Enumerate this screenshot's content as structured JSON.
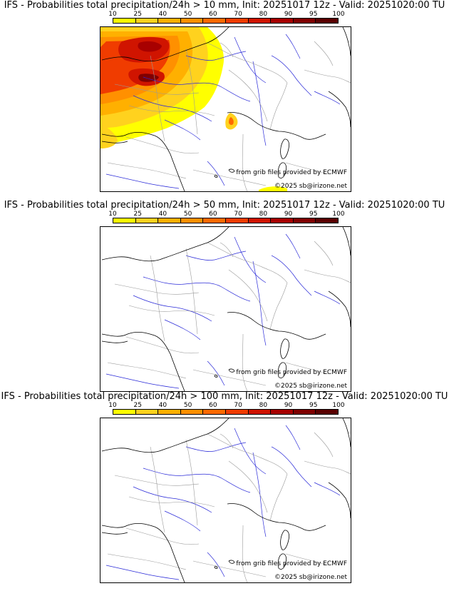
{
  "legend": {
    "ticks": [
      "10",
      "25",
      "40",
      "50",
      "60",
      "70",
      "80",
      "90",
      "95",
      "100"
    ],
    "colors": [
      "#ffff00",
      "#ffd21e",
      "#ffb000",
      "#ff9000",
      "#ff6a00",
      "#f03c00",
      "#d01400",
      "#a80000",
      "#800000",
      "#5a0000"
    ]
  },
  "map_colors": {
    "coast": "#000000",
    "border": "#9a9a9a",
    "river": "#2a2ad8"
  },
  "panels": [
    {
      "title": "IFS - Probabilities total precipitation/24h > 10 mm, Init: 20251017 12z - Valid: 20251020:00 TU",
      "credit_source": "from grib files provided by ECMWF",
      "credit_copy": "©2025 sb@irizone.net",
      "has_precip": true
    },
    {
      "title": "IFS - Probabilities total precipitation/24h > 50 mm, Init: 20251017 12z - Valid: 20251020:00 TU",
      "credit_source": "from grib files provided by ECMWF",
      "credit_copy": "©2025 sb@irizone.net",
      "has_precip": false
    },
    {
      "title": "IFS - Probabilities total precipitation/24h > 100 mm, Init: 20251017 12z - Valid: 20251020:00 TU",
      "credit_source": "from grib files provided by ECMWF",
      "credit_copy": "©2025 sb@irizone.net",
      "has_precip": false
    }
  ]
}
